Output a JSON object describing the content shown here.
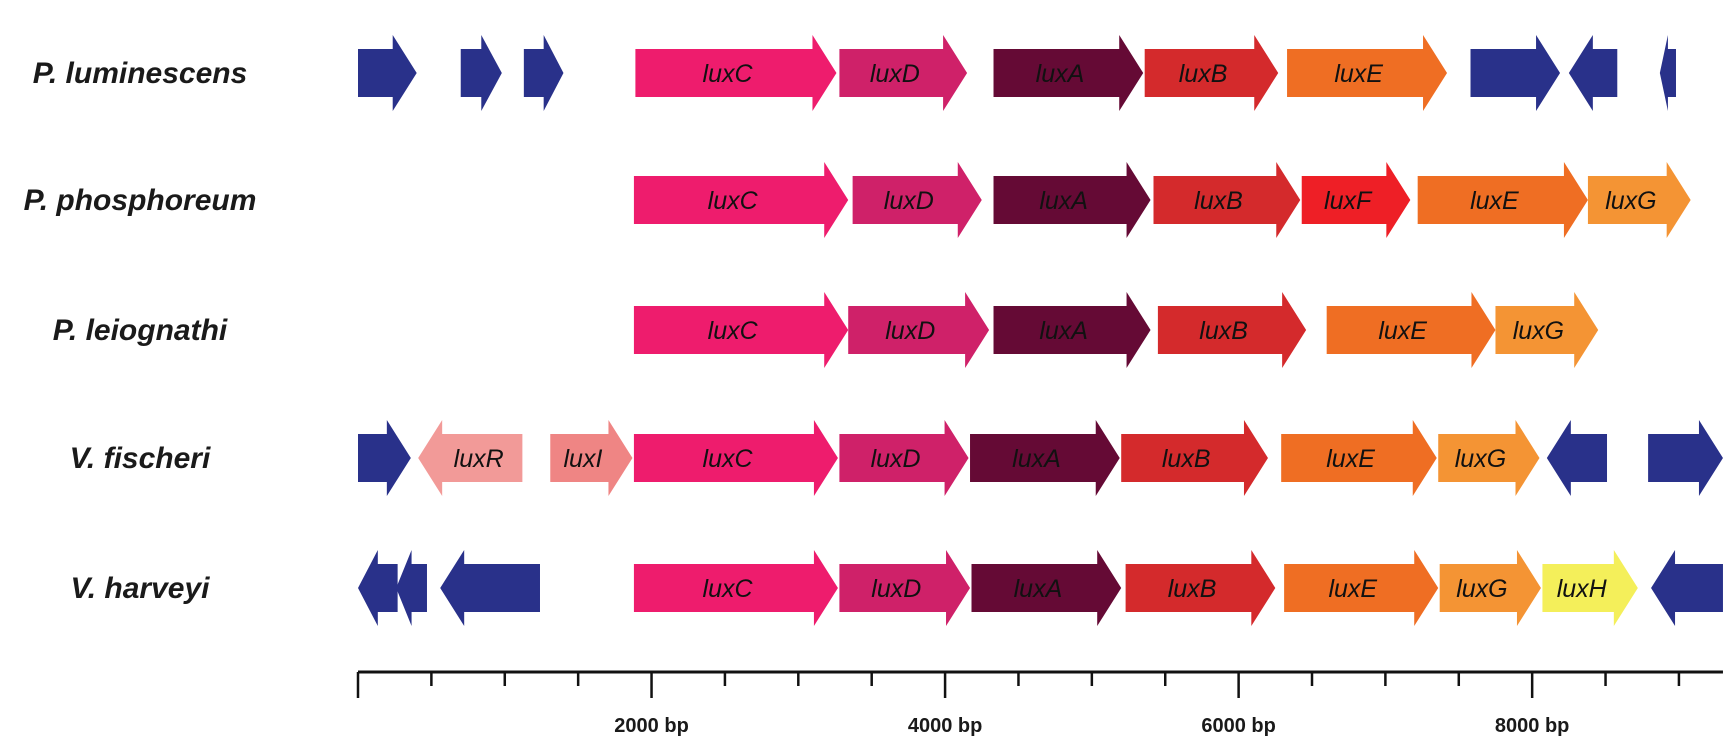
{
  "colors": {
    "luxC": "#ee1c6d",
    "luxD": "#cf2169",
    "luxA": "#650a35",
    "luxB": "#d42a2c",
    "luxF": "#ee1f26",
    "luxE": "#ef6e23",
    "luxG": "#f49434",
    "luxH": "#f4ef5a",
    "luxR": "#f29a98",
    "luxI": "#ef8584",
    "other": "#29318a"
  },
  "axis": {
    "unit": "bp",
    "min": 0,
    "max": 9300,
    "minor_step": 500,
    "tick_labels": [
      "2000 bp",
      "4000 bp",
      "6000 bp",
      "8000 bp"
    ],
    "tick_values": [
      2000,
      4000,
      6000,
      8000
    ]
  },
  "organisms": [
    {
      "name": "P. luminescens",
      "genes": [
        {
          "start": 0,
          "end": 400,
          "dir": "+",
          "color": "other"
        },
        {
          "start": 700,
          "end": 980,
          "dir": "+",
          "color": "other"
        },
        {
          "start": 1130,
          "end": 1400,
          "dir": "+",
          "color": "other"
        },
        {
          "start": 1890,
          "end": 3260,
          "dir": "+",
          "label": "luxC",
          "color": "luxC"
        },
        {
          "start": 3280,
          "end": 4150,
          "dir": "+",
          "label": "luxD",
          "color": "luxD"
        },
        {
          "start": 4330,
          "end": 5350,
          "dir": "+",
          "label": "luxA",
          "color": "luxA"
        },
        {
          "start": 5360,
          "end": 6270,
          "dir": "+",
          "label": "luxB",
          "color": "luxB"
        },
        {
          "start": 6330,
          "end": 7420,
          "dir": "+",
          "label": "luxE",
          "color": "luxE"
        },
        {
          "start": 7580,
          "end": 8190,
          "dir": "+",
          "color": "other"
        },
        {
          "start": 8250,
          "end": 8580,
          "dir": "-",
          "color": "other"
        },
        {
          "start": 8870,
          "end": 8980,
          "dir": "-",
          "color": "other"
        }
      ]
    },
    {
      "name": "P. phosphoreum",
      "genes": [
        {
          "start": 1880,
          "end": 3340,
          "dir": "+",
          "label": "luxC",
          "color": "luxC"
        },
        {
          "start": 3370,
          "end": 4250,
          "dir": "+",
          "label": "luxD",
          "color": "luxD"
        },
        {
          "start": 4330,
          "end": 5400,
          "dir": "+",
          "label": "luxA",
          "color": "luxA"
        },
        {
          "start": 5420,
          "end": 6420,
          "dir": "+",
          "label": "luxB",
          "color": "luxB"
        },
        {
          "start": 6430,
          "end": 7170,
          "dir": "+",
          "label": "luxF",
          "color": "luxF"
        },
        {
          "start": 7220,
          "end": 8380,
          "dir": "+",
          "label": "luxE",
          "color": "luxE"
        },
        {
          "start": 8380,
          "end": 9080,
          "dir": "+",
          "label": "luxG",
          "color": "luxG"
        }
      ]
    },
    {
      "name": "P. leiognathi",
      "genes": [
        {
          "start": 1880,
          "end": 3340,
          "dir": "+",
          "label": "luxC",
          "color": "luxC"
        },
        {
          "start": 3340,
          "end": 4300,
          "dir": "+",
          "label": "luxD",
          "color": "luxD"
        },
        {
          "start": 4330,
          "end": 5400,
          "dir": "+",
          "label": "luxA",
          "color": "luxA"
        },
        {
          "start": 5450,
          "end": 6460,
          "dir": "+",
          "label": "luxB",
          "color": "luxB"
        },
        {
          "start": 6600,
          "end": 7750,
          "dir": "+",
          "label": "luxE",
          "color": "luxE"
        },
        {
          "start": 7750,
          "end": 8450,
          "dir": "+",
          "label": "luxG",
          "color": "luxG"
        }
      ]
    },
    {
      "name": "V. fischeri",
      "genes": [
        {
          "start": 0,
          "end": 360,
          "dir": "+",
          "color": "other"
        },
        {
          "start": 410,
          "end": 1120,
          "dir": "-",
          "label": "luxR",
          "color": "luxR"
        },
        {
          "start": 1310,
          "end": 1870,
          "dir": "+",
          "label": "luxI",
          "color": "luxI"
        },
        {
          "start": 1880,
          "end": 3270,
          "dir": "+",
          "label": "luxC",
          "color": "luxC"
        },
        {
          "start": 3280,
          "end": 4160,
          "dir": "+",
          "label": "luxD",
          "color": "luxD"
        },
        {
          "start": 4170,
          "end": 5190,
          "dir": "+",
          "label": "luxA",
          "color": "luxA"
        },
        {
          "start": 5200,
          "end": 6200,
          "dir": "+",
          "label": "luxB",
          "color": "luxB"
        },
        {
          "start": 6290,
          "end": 7350,
          "dir": "+",
          "label": "luxE",
          "color": "luxE"
        },
        {
          "start": 7360,
          "end": 8050,
          "dir": "+",
          "label": "luxG",
          "color": "luxG"
        },
        {
          "start": 8100,
          "end": 8510,
          "dir": "-",
          "color": "other"
        },
        {
          "start": 8790,
          "end": 9300,
          "dir": "+",
          "color": "other"
        }
      ]
    },
    {
      "name": "V. harveyi",
      "genes": [
        {
          "start": 0,
          "end": 270,
          "dir": "-",
          "color": "other"
        },
        {
          "start": 260,
          "end": 470,
          "dir": "-",
          "color": "other"
        },
        {
          "start": 560,
          "end": 1240,
          "dir": "-",
          "color": "other"
        },
        {
          "start": 1880,
          "end": 3270,
          "dir": "+",
          "label": "luxC",
          "color": "luxC"
        },
        {
          "start": 3280,
          "end": 4170,
          "dir": "+",
          "label": "luxD",
          "color": "luxD"
        },
        {
          "start": 4180,
          "end": 5200,
          "dir": "+",
          "label": "luxA",
          "color": "luxA"
        },
        {
          "start": 5230,
          "end": 6250,
          "dir": "+",
          "label": "luxB",
          "color": "luxB"
        },
        {
          "start": 6310,
          "end": 7360,
          "dir": "+",
          "label": "luxE",
          "color": "luxE"
        },
        {
          "start": 7370,
          "end": 8060,
          "dir": "+",
          "label": "luxG",
          "color": "luxG"
        },
        {
          "start": 8070,
          "end": 8720,
          "dir": "+",
          "label": "luxH",
          "color": "luxH"
        },
        {
          "start": 8810,
          "end": 9300,
          "dir": "-",
          "color": "other"
        }
      ]
    }
  ]
}
